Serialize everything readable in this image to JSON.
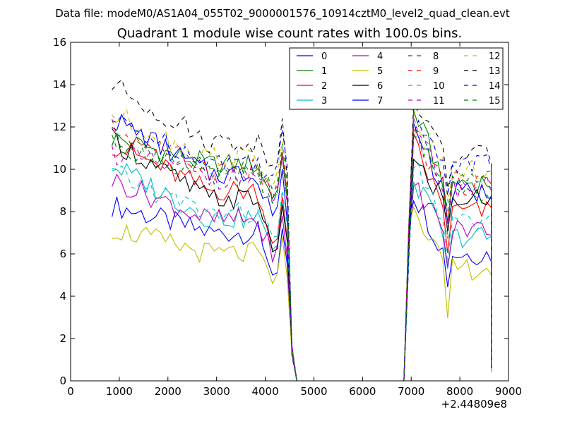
{
  "chart_data": {
    "type": "line",
    "suptitle": "Data file: modeM0/AS1A04_055T02_9000001576_10914cztM0_level2_quad_clean.evt",
    "title": "Quadrant 1 module wise count rates with 100.0s bins.",
    "xlabel": "",
    "ylabel": "",
    "x_offset_label": "+2.44809e8",
    "xlim": [
      0,
      9000
    ],
    "ylim": [
      0,
      16
    ],
    "xticks": [
      0,
      1000,
      2000,
      3000,
      4000,
      5000,
      6000,
      7000,
      8000,
      9000
    ],
    "yticks": [
      0,
      2,
      4,
      6,
      8,
      10,
      12,
      14,
      16
    ],
    "legend_location": "top-right",
    "legend_columns": 4,
    "segments": [
      {
        "x_start": 850,
        "x_end": 4450,
        "step": 100
      },
      {
        "x_start": 4450,
        "x_end": 4650,
        "values": [
          8.9,
          1.2,
          0.0
        ]
      },
      {
        "x_start": 4650,
        "x_end": 6850,
        "value": 0.0
      },
      {
        "x_start": 6850,
        "x_end": 7050,
        "values": [
          0.4,
          6.5,
          11.8
        ]
      },
      {
        "x_start": 7050,
        "x_end": 8650,
        "step": 100
      },
      {
        "x_end_drop": 8650,
        "value": 0.4
      }
    ],
    "series": [
      {
        "name": "0",
        "color": "#0000ff",
        "dash": "solid",
        "first_level": 8.3,
        "second_level": 7.0,
        "end_first": 5.0,
        "end_second": 6.0
      },
      {
        "name": "1",
        "color": "#008000",
        "dash": "solid",
        "first_level": 11.5,
        "second_level": 10.2,
        "end_first": 8.6,
        "end_second": 9.4
      },
      {
        "name": "2",
        "color": "#ff0000",
        "dash": "solid",
        "first_level": 11.2,
        "second_level": 9.0,
        "end_first": 6.5,
        "end_second": 8.0
      },
      {
        "name": "3",
        "color": "#00bfbf",
        "dash": "solid",
        "first_level": 10.2,
        "second_level": 7.7,
        "end_first": 6.2,
        "end_second": 6.8
      },
      {
        "name": "4",
        "color": "#bf00bf",
        "dash": "solid",
        "first_level": 9.5,
        "second_level": 7.6,
        "end_first": 5.6,
        "end_second": 7.2
      },
      {
        "name": "5",
        "color": "#bfbf00",
        "dash": "solid",
        "first_level": 7.2,
        "second_level": 6.0,
        "end_first": 4.6,
        "end_second": 5.3
      },
      {
        "name": "6",
        "color": "#000000",
        "dash": "solid",
        "first_level": 11.4,
        "second_level": 8.6,
        "end_first": 6.1,
        "end_second": 8.6
      },
      {
        "name": "7",
        "color": "#0000ff",
        "dash": "solid",
        "first_level": 12.4,
        "second_level": 9.8,
        "end_first": 7.8,
        "end_second": 8.9
      },
      {
        "name": "8",
        "color": "#008000",
        "dash": "dashed",
        "first_level": 11.3,
        "second_level": 9.6,
        "end_first": 8.4,
        "end_second": 9.0
      },
      {
        "name": "9",
        "color": "#ff0000",
        "dash": "dashed",
        "first_level": 11.9,
        "second_level": 10.0,
        "end_first": 8.6,
        "end_second": 9.3
      },
      {
        "name": "10",
        "color": "#00bfbf",
        "dash": "dashed",
        "first_level": 9.8,
        "second_level": 7.9,
        "end_first": 6.8,
        "end_second": 7.4
      },
      {
        "name": "11",
        "color": "#bf00bf",
        "dash": "dashed",
        "first_level": 10.8,
        "second_level": 9.6,
        "end_first": 8.4,
        "end_second": 9.2
      },
      {
        "name": "12",
        "color": "#bfbf00",
        "dash": "dashed",
        "first_level": 12.6,
        "second_level": 10.6,
        "end_first": 9.1,
        "end_second": 9.9
      },
      {
        "name": "13",
        "color": "#000000",
        "dash": "dashed",
        "first_level": 14.0,
        "second_level": 11.3,
        "end_first": 10.2,
        "end_second": 10.6
      },
      {
        "name": "14",
        "color": "#0000ff",
        "dash": "dashed",
        "first_level": 12.3,
        "second_level": 10.4,
        "end_first": 9.7,
        "end_second": 10.3
      },
      {
        "name": "15",
        "color": "#008000",
        "dash": "dashed",
        "first_level": 11.5,
        "second_level": 9.9,
        "end_first": 9.0,
        "end_second": 9.5
      }
    ]
  }
}
